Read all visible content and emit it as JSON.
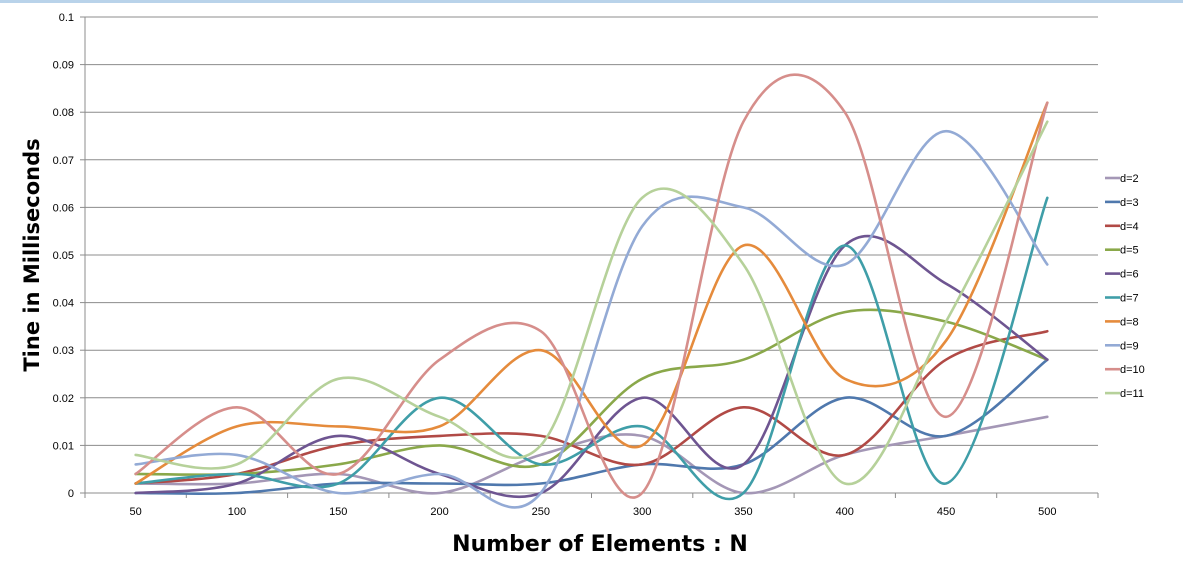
{
  "chart_data": {
    "type": "line",
    "title": "",
    "xlabel": "Number of Elements : N",
    "ylabel": "Tine in Milliseconds",
    "categories": [
      "50",
      "100",
      "150",
      "200",
      "250",
      "300",
      "350",
      "400",
      "450",
      "500"
    ],
    "y_ticks": [
      "0",
      "0.01",
      "0.02",
      "0.03",
      "0.04",
      "0.05",
      "0.06",
      "0.07",
      "0.08",
      "0.09",
      "0.1"
    ],
    "ylim": [
      0,
      0.1
    ],
    "grid": "horizontal",
    "legend_position": "right",
    "series": [
      {
        "name": "d=2",
        "color": "#a497b6",
        "values": [
          0.002,
          0.002,
          0.004,
          0,
          0.008,
          0.012,
          0,
          0.008,
          0.012,
          0.016
        ]
      },
      {
        "name": "d=3",
        "color": "#4f78ad",
        "values": [
          0,
          0,
          0.002,
          0.002,
          0.002,
          0.006,
          0.006,
          0.02,
          0.012,
          0.028
        ]
      },
      {
        "name": "d=4",
        "color": "#b14a46",
        "values": [
          0.002,
          0.004,
          0.01,
          0.012,
          0.012,
          0.006,
          0.018,
          0.008,
          0.028,
          0.034
        ]
      },
      {
        "name": "d=5",
        "color": "#8aa84a",
        "values": [
          0.004,
          0.004,
          0.006,
          0.01,
          0.006,
          0.024,
          0.028,
          0.038,
          0.036,
          0.028
        ]
      },
      {
        "name": "d=6",
        "color": "#6e5591",
        "values": [
          0,
          0.002,
          0.012,
          0.004,
          0,
          0.02,
          0.006,
          0.052,
          0.044,
          0.028
        ]
      },
      {
        "name": "d=7",
        "color": "#3f9ea8",
        "values": [
          0.002,
          0.004,
          0.002,
          0.02,
          0.006,
          0.014,
          0,
          0.052,
          0.002,
          0.062
        ]
      },
      {
        "name": "d=8",
        "color": "#e58b3c",
        "values": [
          0.002,
          0.014,
          0.014,
          0.014,
          0.03,
          0.01,
          0.052,
          0.024,
          0.032,
          0.082
        ]
      },
      {
        "name": "d=9",
        "color": "#93aad5",
        "values": [
          0.006,
          0.008,
          0,
          0.004,
          0,
          0.056,
          0.06,
          0.048,
          0.076,
          0.048
        ]
      },
      {
        "name": "d=10",
        "color": "#d68e8b",
        "values": [
          0.004,
          0.018,
          0.004,
          0.028,
          0.034,
          0,
          0.078,
          0.08,
          0.016,
          0.082
        ]
      },
      {
        "name": "d=11",
        "color": "#b6d19a",
        "values": [
          0.008,
          0.006,
          0.024,
          0.016,
          0.01,
          0.062,
          0.048,
          0.002,
          0.036,
          0.078
        ]
      }
    ]
  }
}
